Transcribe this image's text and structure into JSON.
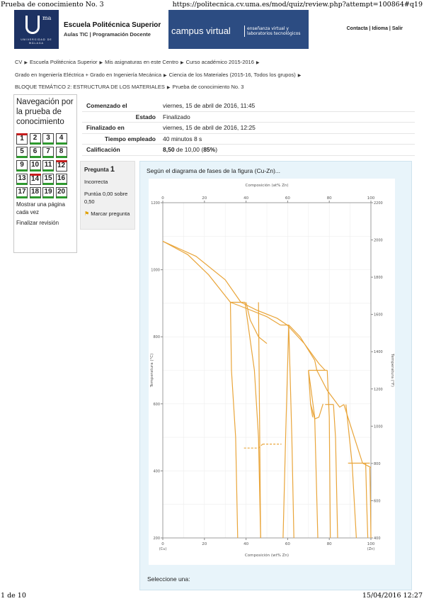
{
  "print": {
    "title": "Prueba de conocimiento No. 3",
    "url": "https://politecnica.cv.uma.es/mod/quiz/review.php?attempt=100864#q19",
    "page": "1 de 10",
    "datetime": "15/04/2016 12:27"
  },
  "header": {
    "logo_sup": "ma",
    "logo_text": "UNIVERSIDAD DE MÁLAGA",
    "school_name": "Escuela Politécnica Superior",
    "school_sub": "Aulas TIC | Programación Docente",
    "campus_main": "campus virtual",
    "campus_tag": "enseñanza virtual y laboratorios tecnológicos",
    "links": "Contacta | Idioma | Salir"
  },
  "breadcrumb": [
    "CV",
    "Escuela Politécnica Superior",
    "Mis asignaturas en este Centro",
    "Curso académico 2015-2016",
    "Grado en Ingeniería Eléctrica + Grado en Ingeniería Mecánica",
    "Ciencia de los Materiales (2015-16, Todos los grupos)",
    "BLOQUE TEMÁTICO 2: ESTRUCTURA DE LOS MATERIALES",
    "Prueba de conocimiento No. 3"
  ],
  "nav": {
    "title": "Navegación por la prueba de conocimiento",
    "questions": [
      {
        "n": "1",
        "state": "incorrect"
      },
      {
        "n": "2",
        "state": "correct"
      },
      {
        "n": "3",
        "state": "correct"
      },
      {
        "n": "4",
        "state": "correct"
      },
      {
        "n": "5",
        "state": "correct"
      },
      {
        "n": "6",
        "state": "correct"
      },
      {
        "n": "7",
        "state": "correct"
      },
      {
        "n": "8",
        "state": "correct"
      },
      {
        "n": "9",
        "state": "correct"
      },
      {
        "n": "10",
        "state": "correct"
      },
      {
        "n": "11",
        "state": "correct"
      },
      {
        "n": "12",
        "state": "incorrect"
      },
      {
        "n": "13",
        "state": "correct"
      },
      {
        "n": "14",
        "state": "incorrect"
      },
      {
        "n": "15",
        "state": "correct"
      },
      {
        "n": "16",
        "state": "correct"
      },
      {
        "n": "17",
        "state": "correct"
      },
      {
        "n": "18",
        "state": "correct"
      },
      {
        "n": "19",
        "state": "correct"
      },
      {
        "n": "20",
        "state": "correct"
      }
    ],
    "show_one_page": "Mostrar una página cada vez",
    "finish_review": "Finalizar revisión"
  },
  "summary": [
    {
      "label": "Comenzado el",
      "value": "viernes, 15 de abril de 2016, 11:45"
    },
    {
      "label": "Estado",
      "value": "Finalizado"
    },
    {
      "label": "Finalizado en",
      "value": "viernes, 15 de abril de 2016, 12:25"
    },
    {
      "label": "Tiempo empleado",
      "value": "40 minutos 8 s"
    },
    {
      "label": "Calificación",
      "value_bold": "8,50",
      "value_rest": " de 10,00 (",
      "value_pct": "85%",
      "value_end": ")"
    }
  ],
  "question": {
    "label": "Pregunta",
    "number": "1",
    "state": "Incorrecta",
    "grade": "Puntúa 0,00 sobre 0,50",
    "flag": "Marcar pregunta",
    "text": "Según el diagrama de fases de la figura (Cu-Zn)...",
    "select_one": "Seleccione una:"
  },
  "chart_data": {
    "type": "line",
    "title": "",
    "top_axis_label": "Composición (at% Zn)",
    "xlabel": "Composición (wt% Zn)",
    "ylabel_left": "Temperatura (°C)",
    "ylabel_right": "Temperatura (°F)",
    "xlim": [
      0,
      100
    ],
    "ylim": [
      200,
      1200
    ],
    "x_ticks": [
      "0",
      "20",
      "40",
      "60",
      "80",
      "100"
    ],
    "x_tick_end_labels": {
      "left": "(Cu)",
      "right": "(Zn)"
    },
    "top_ticks": [
      "0",
      "20",
      "40",
      "60",
      "80",
      "100"
    ],
    "y_ticks_left": [
      "200",
      "400",
      "600",
      "800",
      "1000",
      "1200"
    ],
    "y_ticks_right": [
      "400",
      "600",
      "800",
      "1000",
      "1200",
      "1400",
      "1600",
      "1800",
      "2000",
      "2200"
    ],
    "line_color": "#e9a53a",
    "lines": [
      {
        "x": [
          0,
          12,
          22,
          32.5
        ],
        "y": [
          1085,
          1045,
          985,
          903
        ]
      },
      {
        "x": [
          0,
          16,
          30,
          37.5
        ],
        "y": [
          1085,
          1040,
          970,
          903
        ]
      },
      {
        "x": [
          32.5,
          40,
          50,
          56.5
        ],
        "y": [
          903,
          885,
          860,
          835
        ]
      },
      {
        "x": [
          37.5,
          45,
          55,
          59.8
        ],
        "y": [
          903,
          880,
          855,
          835
        ]
      },
      {
        "x": [
          32.5,
          39.5
        ],
        "y": [
          903,
          903
        ]
      },
      {
        "x": [
          56.5,
          60.5
        ],
        "y": [
          835,
          835
        ]
      },
      {
        "x": [
          60.5,
          66,
          73,
          74
        ],
        "y": [
          835,
          800,
          730,
          700
        ]
      },
      {
        "x": [
          59.8,
          68,
          75,
          78
        ],
        "y": [
          835,
          780,
          720,
          700
        ]
      },
      {
        "x": [
          40,
          42,
          46,
          50
        ],
        "y": [
          903,
          850,
          800,
          780
        ]
      },
      {
        "x": [
          70,
          79
        ],
        "y": [
          700,
          700
        ]
      },
      {
        "x": [
          74,
          79,
          85,
          87
        ],
        "y": [
          700,
          640,
          590,
          598
        ]
      },
      {
        "x": [
          78,
          82
        ],
        "y": [
          598,
          598
        ]
      },
      {
        "x": [
          87,
          92,
          96
        ],
        "y": [
          598,
          500,
          423
        ]
      },
      {
        "x": [
          89,
          99.5
        ],
        "y": [
          423,
          423
        ]
      },
      {
        "x": [
          96,
          98.5,
          100
        ],
        "y": [
          423,
          415,
          410
        ]
      },
      {
        "x": [
          32.5,
          33,
          35,
          36
        ],
        "y": [
          903,
          700,
          500,
          200
        ]
      },
      {
        "x": [
          39.5,
          44,
          46,
          47
        ],
        "y": [
          903,
          700,
          500,
          200
        ]
      },
      {
        "x": [
          46,
          47
        ],
        "y": [
          903,
          200
        ]
      },
      {
        "x": [
          60.5,
          59,
          57.8
        ],
        "y": [
          835,
          500,
          200
        ]
      },
      {
        "x": [
          60.5,
          62,
          63
        ],
        "y": [
          835,
          500,
          200
        ]
      },
      {
        "x": [
          70,
          71,
          72
        ],
        "y": [
          700,
          600,
          560
        ]
      },
      {
        "x": [
          70,
          73,
          74.5
        ],
        "y": [
          700,
          560,
          200
        ]
      },
      {
        "x": [
          79,
          80,
          80.5
        ],
        "y": [
          700,
          560,
          200
        ]
      },
      {
        "x": [
          82,
          83,
          84
        ],
        "y": [
          598,
          500,
          200
        ]
      },
      {
        "x": [
          88,
          91,
          93
        ],
        "y": [
          598,
          420,
          200
        ]
      },
      {
        "x": [
          97.5,
          98,
          98.5
        ],
        "y": [
          423,
          300,
          200
        ]
      },
      {
        "x": [
          99.5,
          99.8,
          100
        ],
        "y": [
          410,
          300,
          200
        ]
      },
      {
        "x": [
          71,
          73,
          75,
          77
        ],
        "y": [
          600,
          555,
          560,
          600
        ]
      }
    ],
    "dashed_lines": [
      {
        "x": [
          39,
          46
        ],
        "y": [
          468,
          468
        ]
      },
      {
        "x": [
          46,
          48
        ],
        "y": [
          468,
          480
        ]
      },
      {
        "x": [
          48,
          57
        ],
        "y": [
          480,
          480
        ]
      }
    ]
  }
}
